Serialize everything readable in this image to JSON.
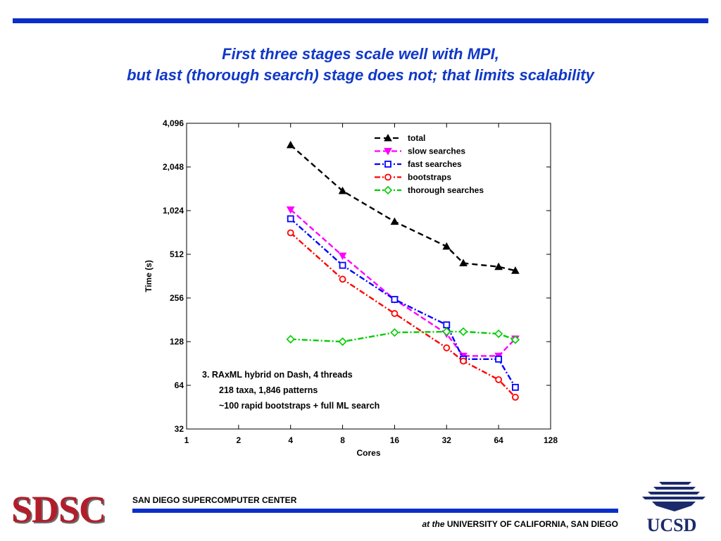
{
  "slide": {
    "title_line1": "First three stages scale well with MPI,",
    "title_line2": "but last (thorough search) stage does not; that limits scalability",
    "colors": {
      "accent": "#0a2ec8",
      "title": "#1038c8",
      "sdsc_red": "#b21d2a",
      "ucsd_navy": "#1b2a6b"
    }
  },
  "footer": {
    "sdsc_logo": "SDSC",
    "center_name": "SAN DIEGO SUPERCOMPUTER CENTER",
    "at_the": "at the",
    "university": "UNIVERSITY OF CALIFORNIA, SAN DIEGO",
    "ucsd_logo": "UCSD"
  },
  "chart_data": {
    "type": "line",
    "xlabel": "Cores",
    "ylabel": "Time (s)",
    "x_scale": "log2",
    "y_scale": "log2",
    "xlim": [
      1,
      128
    ],
    "ylim": [
      32,
      4096
    ],
    "x_ticks": [
      1,
      2,
      4,
      8,
      16,
      32,
      64,
      128
    ],
    "x_tick_labels": [
      "1",
      "2",
      "4",
      "8",
      "16",
      "32",
      "64",
      "128"
    ],
    "y_ticks": [
      32,
      64,
      128,
      256,
      512,
      1024,
      2048,
      4096
    ],
    "y_tick_labels": [
      "32",
      "64",
      "128",
      "256",
      "512",
      "1,024",
      "2,048",
      "4,096"
    ],
    "grid": false,
    "legend_position": "top-right",
    "series": [
      {
        "name": "total",
        "color": "#000000",
        "marker": "triangle-up",
        "dash": "8,5",
        "x": [
          4,
          8,
          16,
          32,
          40,
          64,
          80
        ],
        "y": [
          2900,
          1400,
          860,
          580,
          445,
          420,
          395
        ]
      },
      {
        "name": "slow searches",
        "color": "#ff00ff",
        "marker": "triangle-down",
        "dash": "8,4",
        "x": [
          4,
          8,
          16,
          32,
          40,
          64,
          80
        ],
        "y": [
          1040,
          500,
          250,
          145,
          102,
          102,
          134
        ]
      },
      {
        "name": "fast searches",
        "color": "#0000ff",
        "marker": "square",
        "dash": "8,3,2,3",
        "x": [
          4,
          8,
          16,
          32,
          40,
          64,
          80
        ],
        "y": [
          900,
          430,
          250,
          167,
          97,
          97,
          62
        ]
      },
      {
        "name": "bootstraps",
        "color": "#ff0000",
        "marker": "circle",
        "dash": "8,3,2,3",
        "x": [
          4,
          8,
          16,
          32,
          40,
          64,
          80
        ],
        "y": [
          720,
          345,
          200,
          116,
          94,
          70,
          53
        ]
      },
      {
        "name": "thorough searches",
        "color": "#00cc00",
        "marker": "diamond",
        "dash": "8,3,2,3",
        "x": [
          4,
          8,
          16,
          32,
          40,
          64,
          80
        ],
        "y": [
          133,
          128,
          148,
          150,
          150,
          145,
          132
        ]
      }
    ],
    "annotation": [
      "3.  RAxML hybrid on Dash, 4 threads",
      "218 taxa, 1,846 patterns",
      "~100 rapid bootstraps + full ML search"
    ]
  }
}
